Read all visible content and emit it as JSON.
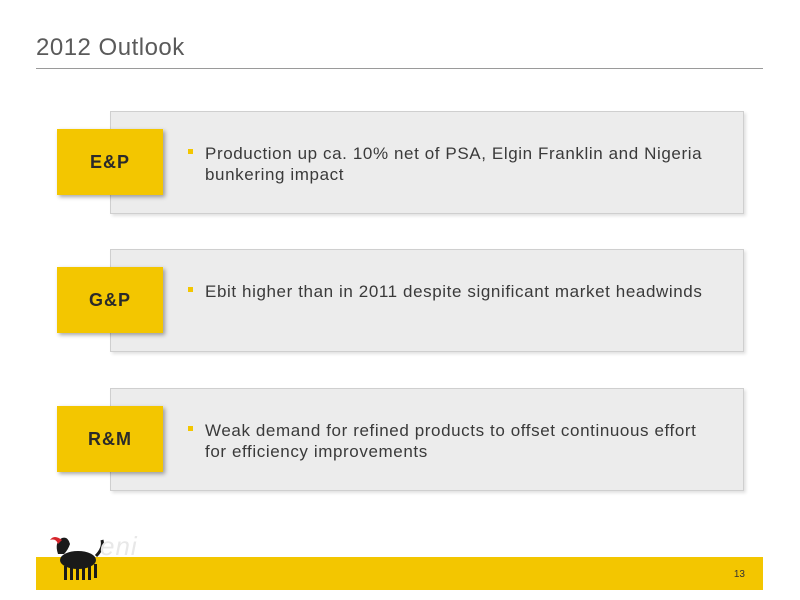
{
  "slide": {
    "title": "2012 Outlook",
    "page_number": "13"
  },
  "sections": [
    {
      "badge": "E&P",
      "text": "Production up ca. 10% net of PSA, Elgin Franklin and Nigeria bunkering impact"
    },
    {
      "badge": "G&P",
      "text": "Ebit higher than in 2011 despite significant market headwinds"
    },
    {
      "badge": "R&M",
      "text": "Weak demand for refined products to offset continuous effort for efficiency improvements"
    }
  ],
  "logo": {
    "word": "eni",
    "icon": "six-legged-dog-logo-icon"
  },
  "colors": {
    "accent": "#f3c600",
    "panel": "#ececec",
    "title": "#5a5a5a"
  }
}
